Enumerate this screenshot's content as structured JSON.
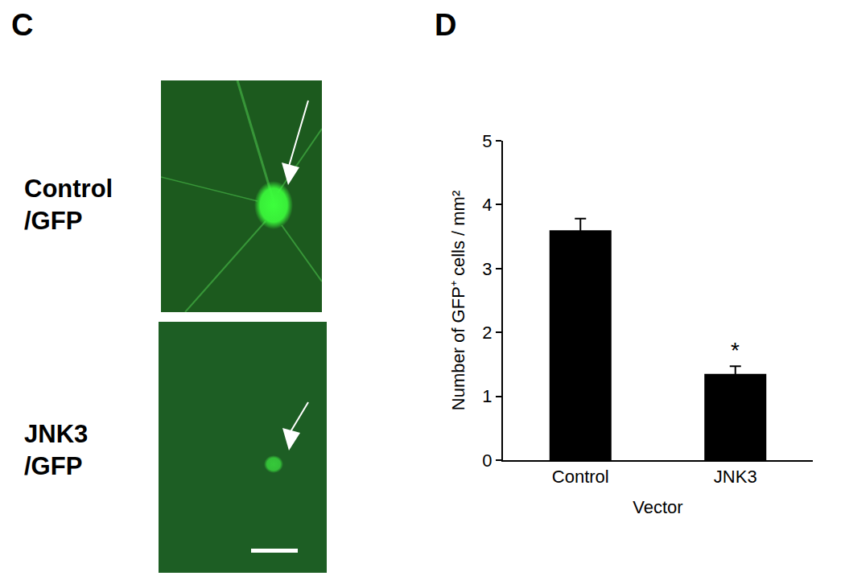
{
  "panels": [
    {
      "label": "C",
      "images": [
        {
          "label": [
            "Control",
            "/GFP"
          ]
        },
        {
          "label": [
            "JNK3",
            "/GFP"
          ]
        }
      ]
    },
    {
      "label": "D"
    }
  ],
  "chart_data": {
    "type": "bar",
    "categories": [
      "Control",
      "JNK3"
    ],
    "values": [
      3.6,
      1.35
    ],
    "error": [
      0.18,
      0.12
    ],
    "color": "#000000",
    "x_label": "Vector",
    "y_label": "Number of GFP⁺ cells / mm²",
    "ylim": [
      0,
      5
    ],
    "yticks": [
      0,
      1,
      2,
      3,
      4,
      5
    ],
    "grid": false,
    "annotations": [
      {
        "category": "JNK3",
        "text": "*"
      }
    ]
  }
}
